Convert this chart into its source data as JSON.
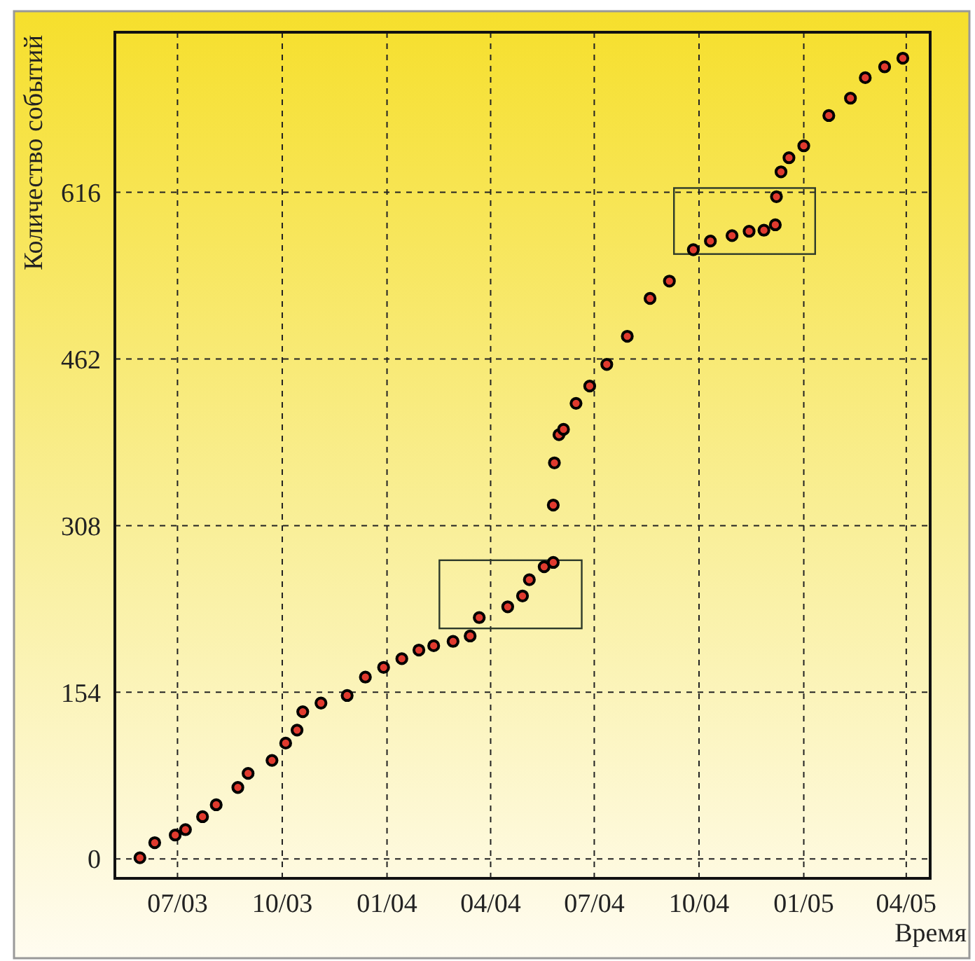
{
  "chart_data": {
    "type": "scatter",
    "xlabel": "Время",
    "ylabel": "Количество событий",
    "xlim": [
      "2003-05-07",
      "2005-04-22"
    ],
    "ylim": [
      -18,
      764
    ],
    "xticks": [
      {
        "value": "2003-07-01",
        "label": "07/03"
      },
      {
        "value": "2003-10-01",
        "label": "10/03"
      },
      {
        "value": "2004-01-01",
        "label": "01/04"
      },
      {
        "value": "2004-04-01",
        "label": "04/04"
      },
      {
        "value": "2004-07-01",
        "label": "07/04"
      },
      {
        "value": "2004-10-01",
        "label": "10/04"
      },
      {
        "value": "2005-01-01",
        "label": "01/05"
      },
      {
        "value": "2005-04-01",
        "label": "04/05"
      }
    ],
    "yticks": [
      0,
      154,
      308,
      462,
      616
    ],
    "grid": true,
    "marker": "circle",
    "series": [
      {
        "color": "#e03a2e",
        "x": [
          "2003-05-29",
          "2003-06-11",
          "2003-06-29",
          "2003-07-08",
          "2003-07-23",
          "2003-08-04",
          "2003-08-23",
          "2003-09-01",
          "2003-09-22",
          "2003-10-04",
          "2003-10-14",
          "2003-10-19",
          "2003-11-04",
          "2003-11-27",
          "2003-12-13",
          "2003-12-29",
          "2004-01-14",
          "2004-01-29",
          "2004-02-11",
          "2004-02-28",
          "2004-03-14",
          "2004-03-22",
          "2004-04-16",
          "2004-04-29",
          "2004-05-05",
          "2004-05-18",
          "2004-05-26",
          "2004-05-26",
          "2004-05-27",
          "2004-05-31",
          "2004-06-04",
          "2004-06-15",
          "2004-06-27",
          "2004-07-12",
          "2004-07-30",
          "2004-08-19",
          "2004-09-05",
          "2004-09-26",
          "2004-10-11",
          "2004-10-30",
          "2004-11-14",
          "2004-11-27",
          "2004-12-07",
          "2004-12-08",
          "2004-12-12",
          "2004-12-19",
          "2005-01-01",
          "2005-01-23",
          "2005-02-11",
          "2005-02-24",
          "2005-03-13",
          "2005-03-29"
        ],
        "values": [
          1,
          15,
          22,
          27,
          39,
          50,
          66,
          79,
          91,
          107,
          119,
          136,
          144,
          151,
          168,
          177,
          185,
          193,
          197,
          201,
          206,
          223,
          233,
          243,
          258,
          270,
          274,
          327,
          366,
          392,
          397,
          421,
          437,
          457,
          483,
          518,
          534,
          563,
          571,
          576,
          580,
          581,
          586,
          612,
          635,
          648,
          659,
          687,
          703,
          722,
          732,
          740
        ]
      }
    ]
  }
}
